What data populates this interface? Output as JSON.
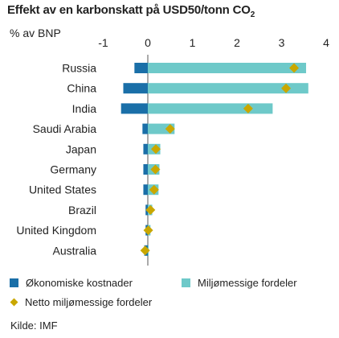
{
  "title": "Effekt av en karbonskatt på USD50/tonn CO",
  "title_sub": "2",
  "subtitle": "% av BNP",
  "source": "Kilde: IMF",
  "colors": {
    "costs": "#1a6fa8",
    "benefits": "#6ec9c9",
    "net": "#c9a700",
    "axis": "#555555"
  },
  "chart_data": {
    "type": "bar",
    "orientation": "horizontal",
    "stacked": true,
    "title": "Effekt av en karbonskatt på USD50/tonn CO2",
    "xlabel": "% av BNP",
    "xlim": [
      -1.3,
      4.1
    ],
    "xticks": [
      -1,
      0,
      1,
      2,
      3,
      4
    ],
    "xtick_labels": [
      "-1",
      "0",
      "1",
      "2",
      "3",
      "4"
    ],
    "grid": false,
    "legend_position": "bottom",
    "categories": [
      "Russia",
      "China",
      "India",
      "Saudi Arabia",
      "Japan",
      "Germany",
      "United States",
      "Brazil",
      "United Kingdom",
      "Australia"
    ],
    "series": [
      {
        "name": "Økonomiske kostnader",
        "kind": "bar",
        "values": [
          -0.3,
          -0.55,
          -0.6,
          -0.12,
          -0.1,
          -0.1,
          -0.1,
          -0.05,
          -0.05,
          -0.08
        ]
      },
      {
        "name": "Miljømessige fordeler",
        "kind": "bar",
        "values": [
          3.55,
          3.6,
          2.8,
          0.6,
          0.28,
          0.26,
          0.24,
          0.1,
          0.06,
          0.02
        ]
      },
      {
        "name": "Netto miljømessige fordeler",
        "kind": "marker",
        "values": [
          3.28,
          3.1,
          2.25,
          0.5,
          0.18,
          0.17,
          0.14,
          0.06,
          0.01,
          -0.06
        ]
      }
    ]
  }
}
